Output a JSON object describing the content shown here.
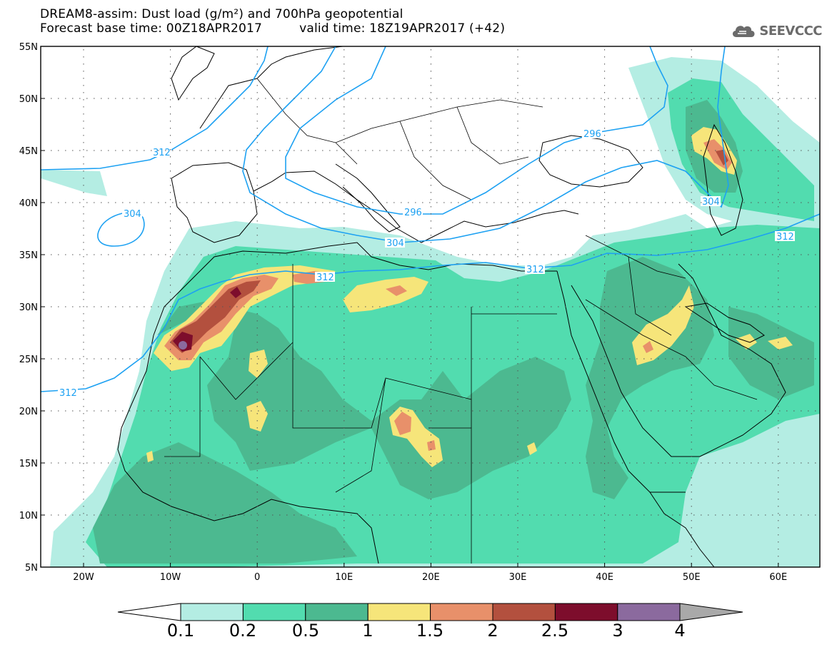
{
  "header": {
    "title_line1": "DREAM8-assim: Dust load (g/m²) and 700hPa geopotential",
    "base_time": "Forecast base time: 00Z18APR2017",
    "valid_time": "valid time: 18Z19APR2017 (+42)"
  },
  "logo": {
    "text": "SEEVCCC",
    "icon": "cloud-icon"
  },
  "map": {
    "lat_labels": [
      "55N",
      "50N",
      "45N",
      "40N",
      "35N",
      "30N",
      "25N",
      "20N",
      "15N",
      "10N",
      "5N"
    ],
    "lon_labels": [
      "20W",
      "10W",
      "0",
      "10E",
      "20E",
      "30E",
      "40E",
      "50E",
      "60E"
    ],
    "contour_labels": [
      "312",
      "304",
      "296",
      "304",
      "312",
      "312",
      "296",
      "304",
      "312"
    ]
  },
  "colorbar": {
    "labels": [
      "0.1",
      "0.2",
      "0.5",
      "1",
      "1.5",
      "2",
      "2.5",
      "3",
      "4"
    ],
    "colors": [
      "#ffffff",
      "#b4ede3",
      "#52dcaf",
      "#4cb990",
      "#f6e57a",
      "#e8906a",
      "#b3503e",
      "#7d0d2c",
      "#8b6a9e",
      "#a9a9a9"
    ]
  },
  "legend_colors": {
    "contour": "#1da1f2",
    "coast": "#000000"
  }
}
